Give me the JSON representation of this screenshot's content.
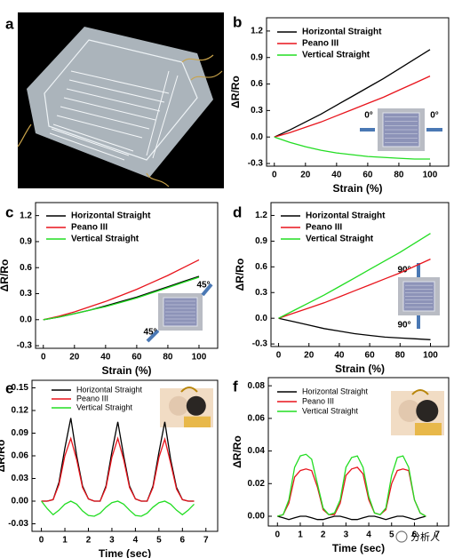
{
  "image_panel": {
    "label": "a"
  },
  "watermark": "分析人",
  "chart_data": [
    {
      "type": "line",
      "label": "b",
      "xlabel": "Strain (%)",
      "ylabel": "ΔR/Ro",
      "x": [
        0,
        10,
        20,
        30,
        40,
        50,
        60,
        70,
        80,
        90,
        100
      ],
      "xlim": [
        -5,
        112
      ],
      "ylim": [
        -0.33,
        1.35
      ],
      "xticks": [
        0,
        20,
        40,
        60,
        80,
        100
      ],
      "yticks": [
        -0.3,
        {
          "value": 0,
          "label": "0.0"
        },
        0.3,
        0.6,
        0.9,
        1.2
      ],
      "series": [
        {
          "name": "Horizontal Straight",
          "color": "#000000",
          "values": [
            0,
            0.08,
            0.17,
            0.26,
            0.36,
            0.46,
            0.56,
            0.66,
            0.77,
            0.88,
            0.99
          ]
        },
        {
          "name": "Peano III",
          "color": "#e8141c",
          "values": [
            0,
            0.05,
            0.11,
            0.17,
            0.24,
            0.31,
            0.38,
            0.45,
            0.53,
            0.61,
            0.69
          ]
        },
        {
          "name": "Vertical Straight",
          "color": "#22dd22",
          "values": [
            0,
            -0.06,
            -0.11,
            -0.15,
            -0.18,
            -0.2,
            -0.22,
            -0.23,
            -0.24,
            -0.25,
            -0.25
          ]
        }
      ],
      "annotations": [
        "0°",
        "0°"
      ]
    },
    {
      "type": "line",
      "label": "c",
      "xlabel": "Strain (%)",
      "ylabel": "ΔR/Ro",
      "x": [
        0,
        10,
        20,
        30,
        40,
        50,
        60,
        70,
        80,
        90,
        100
      ],
      "xlim": [
        -5,
        112
      ],
      "ylim": [
        -0.33,
        1.35
      ],
      "xticks": [
        0,
        20,
        40,
        60,
        80,
        100
      ],
      "yticks": [
        -0.3,
        {
          "value": 0,
          "label": "0.0"
        },
        0.3,
        0.6,
        0.9,
        1.2
      ],
      "series": [
        {
          "name": "Horizontal Straight",
          "color": "#000000",
          "values": [
            0,
            0.03,
            0.07,
            0.11,
            0.16,
            0.21,
            0.26,
            0.32,
            0.38,
            0.44,
            0.5
          ]
        },
        {
          "name": "Peano III",
          "color": "#e8141c",
          "values": [
            0,
            0.04,
            0.09,
            0.15,
            0.21,
            0.28,
            0.35,
            0.43,
            0.51,
            0.6,
            0.69
          ]
        },
        {
          "name": "Vertical Straight",
          "color": "#22dd22",
          "values": [
            0,
            0.03,
            0.07,
            0.11,
            0.15,
            0.2,
            0.25,
            0.31,
            0.37,
            0.43,
            0.49
          ]
        }
      ],
      "annotations": [
        "45°",
        "45°"
      ]
    },
    {
      "type": "line",
      "label": "d",
      "xlabel": "Strain (%)",
      "ylabel": "ΔR/Ro",
      "x": [
        0,
        10,
        20,
        30,
        40,
        50,
        60,
        70,
        80,
        90,
        100
      ],
      "xlim": [
        -5,
        112
      ],
      "ylim": [
        -0.33,
        1.35
      ],
      "xticks": [
        0,
        20,
        40,
        60,
        80,
        100
      ],
      "yticks": [
        -0.3,
        {
          "value": 0,
          "label": "0.0"
        },
        0.3,
        0.6,
        0.9,
        1.2
      ],
      "series": [
        {
          "name": "Horizontal Straight",
          "color": "#000000",
          "values": [
            0,
            -0.04,
            -0.08,
            -0.12,
            -0.15,
            -0.18,
            -0.2,
            -0.22,
            -0.23,
            -0.24,
            -0.25
          ]
        },
        {
          "name": "Peano III",
          "color": "#e8141c",
          "values": [
            0,
            0.06,
            0.12,
            0.18,
            0.25,
            0.32,
            0.39,
            0.46,
            0.53,
            0.61,
            0.69
          ]
        },
        {
          "name": "Vertical Straight",
          "color": "#22dd22",
          "values": [
            0,
            0.09,
            0.18,
            0.27,
            0.37,
            0.47,
            0.57,
            0.67,
            0.77,
            0.88,
            0.99
          ]
        }
      ],
      "annotations": [
        "90°",
        "90°"
      ]
    },
    {
      "type": "line",
      "label": "e",
      "xlabel": "Time (sec)",
      "ylabel": "ΔR/Ro",
      "x": [
        0,
        0.25,
        0.5,
        0.75,
        1,
        1.25,
        1.5,
        1.75,
        2,
        2.25,
        2.5,
        2.75,
        3,
        3.25,
        3.5,
        3.75,
        4,
        4.25,
        4.5,
        4.75,
        5,
        5.25,
        5.5,
        5.75,
        6,
        6.25,
        6.5
      ],
      "xlim": [
        -0.4,
        7.5
      ],
      "ylim": [
        -0.04,
        0.16
      ],
      "xticks": [
        0,
        1,
        2,
        3,
        4,
        5,
        6,
        7
      ],
      "yticks": [
        -0.03,
        {
          "value": 0,
          "label": "0.00"
        },
        0.03,
        0.06,
        0.09,
        0.12,
        0.15
      ],
      "series": [
        {
          "name": "Horizontal Straight",
          "color": "#000000",
          "values": [
            0,
            0,
            0.002,
            0.025,
            0.07,
            0.11,
            0.06,
            0.02,
            0.003,
            0,
            0,
            0.02,
            0.065,
            0.105,
            0.06,
            0.02,
            0.003,
            0,
            0,
            0.02,
            0.065,
            0.105,
            0.055,
            0.018,
            0.002,
            0,
            0
          ]
        },
        {
          "name": "Peano III",
          "color": "#e8141c",
          "values": [
            0,
            0,
            0.002,
            0.022,
            0.06,
            0.083,
            0.055,
            0.018,
            0.003,
            0,
            0,
            0.018,
            0.058,
            0.083,
            0.055,
            0.018,
            0.003,
            0,
            0,
            0.018,
            0.058,
            0.082,
            0.05,
            0.016,
            0.002,
            0,
            0
          ]
        },
        {
          "name": "Vertical Straight",
          "color": "#22dd22",
          "values": [
            0,
            -0.01,
            -0.018,
            -0.012,
            -0.004,
            0,
            -0.004,
            -0.013,
            -0.019,
            -0.02,
            -0.016,
            -0.008,
            -0.002,
            0,
            -0.004,
            -0.012,
            -0.019,
            -0.02,
            -0.016,
            -0.008,
            -0.002,
            0,
            -0.004,
            -0.012,
            -0.018,
            -0.012,
            -0.004
          ]
        }
      ]
    },
    {
      "type": "line",
      "label": "f",
      "xlabel": "Time (sec)",
      "ylabel": "ΔR/Ro",
      "x": [
        0,
        0.25,
        0.5,
        0.75,
        1,
        1.25,
        1.5,
        1.75,
        2,
        2.25,
        2.5,
        2.75,
        3,
        3.25,
        3.5,
        3.75,
        4,
        4.25,
        4.5,
        4.75,
        5,
        5.25,
        5.5,
        5.75,
        6,
        6.25,
        6.5
      ],
      "xlim": [
        -0.4,
        7.5
      ],
      "ylim": [
        -0.006,
        0.085
      ],
      "xticks": [
        0,
        1,
        2,
        3,
        4,
        5,
        6,
        7
      ],
      "yticks": [
        {
          "value": 0,
          "label": "0.00"
        },
        0.02,
        0.04,
        0.06,
        0.08
      ],
      "series": [
        {
          "name": "Horizontal Straight",
          "color": "#000000",
          "values": [
            0,
            -0.001,
            -0.002,
            -0.001,
            0,
            0,
            -0.001,
            -0.002,
            -0.002,
            -0.001,
            0,
            0,
            -0.001,
            -0.002,
            -0.002,
            -0.001,
            0,
            0,
            -0.001,
            -0.002,
            -0.001,
            0,
            0,
            -0.001,
            -0.002,
            -0.001,
            0
          ]
        },
        {
          "name": "Peano III",
          "color": "#e8141c",
          "values": [
            0,
            0.001,
            0.008,
            0.024,
            0.028,
            0.029,
            0.028,
            0.018,
            0.004,
            0.001,
            0.001,
            0.008,
            0.025,
            0.029,
            0.03,
            0.026,
            0.01,
            0.002,
            0.001,
            0.004,
            0.02,
            0.028,
            0.029,
            0.028,
            0.01,
            0.002,
            0
          ]
        },
        {
          "name": "Vertical Straight",
          "color": "#22dd22",
          "values": [
            0,
            0.001,
            0.01,
            0.03,
            0.037,
            0.038,
            0.035,
            0.02,
            0.005,
            0.001,
            0.002,
            0.01,
            0.03,
            0.036,
            0.037,
            0.03,
            0.012,
            0.002,
            0.001,
            0.005,
            0.025,
            0.036,
            0.037,
            0.03,
            0.01,
            0.002,
            0
          ]
        }
      ]
    }
  ]
}
